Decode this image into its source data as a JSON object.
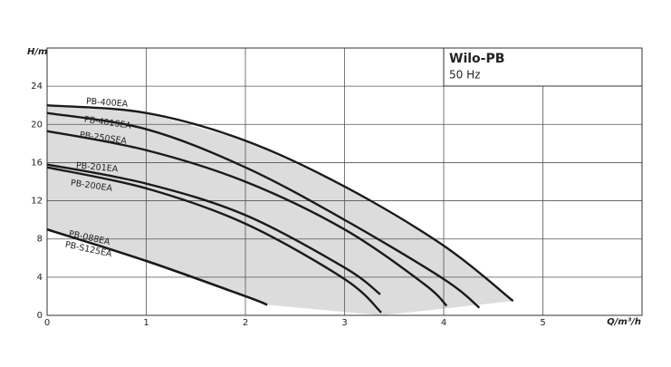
{
  "chart_data": {
    "type": "line",
    "title": "Wilo-PB",
    "subtitle": "50 Hz",
    "x_label": "Q/m³/h",
    "y_label": "H/m",
    "xlim": [
      0,
      6
    ],
    "ylim": [
      0,
      28
    ],
    "xticks": [
      0,
      1,
      2,
      3,
      4,
      5
    ],
    "yticks": [
      0,
      4,
      8,
      12,
      16,
      20,
      24
    ],
    "grid": true,
    "shaded_envelope": true,
    "series": [
      {
        "name": "PB-400EA",
        "color": "#1a1a1a",
        "x": [
          0,
          1,
          2,
          3,
          4,
          4.7
        ],
        "values": [
          22,
          21.2,
          18.3,
          13.5,
          7.3,
          1.5
        ]
      },
      {
        "name": "PB-401SEA",
        "color": "#1a1a1a",
        "x": [
          0,
          1,
          2,
          3,
          4,
          4.36
        ],
        "values": [
          21.2,
          19.5,
          15.5,
          10,
          3.8,
          0.8
        ]
      },
      {
        "name": "PB-250SEA",
        "color": "#1a1a1a",
        "x": [
          0,
          1,
          2,
          3,
          3.8,
          4.03
        ],
        "values": [
          19.3,
          17.3,
          14,
          9,
          3.3,
          1
        ]
      },
      {
        "name": "PB-201EA",
        "color": "#1a1a1a",
        "x": [
          0,
          1,
          2,
          3,
          3.36
        ],
        "values": [
          15.8,
          13.8,
          10.5,
          5,
          2.2
        ]
      },
      {
        "name": "PB-200EA",
        "color": "#1a1a1a",
        "x": [
          0,
          1,
          2,
          3,
          3.37
        ],
        "values": [
          15.5,
          13.3,
          9.6,
          3.8,
          0.3
        ]
      },
      {
        "name": "PB-088EA",
        "color": "#1a1a1a",
        "x": [
          0,
          1,
          2,
          2.22
        ],
        "values": [
          9,
          5.7,
          2,
          1.1
        ]
      },
      {
        "name": "PB-S125EA",
        "color": "#1a1a1a",
        "x": [
          0,
          1,
          2,
          2.22
        ],
        "values": [
          9,
          5.7,
          2,
          1.1
        ]
      }
    ]
  }
}
